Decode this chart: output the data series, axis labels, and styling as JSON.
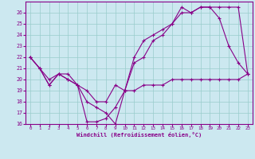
{
  "xlabel": "Windchill (Refroidissement éolien,°C)",
  "bg_color": "#cce8f0",
  "grid_color": "#99cccc",
  "line_color": "#880088",
  "spine_color": "#880088",
  "ylim": [
    16,
    27
  ],
  "xlim": [
    -0.5,
    23.5
  ],
  "yticks": [
    16,
    17,
    18,
    19,
    20,
    21,
    22,
    23,
    24,
    25,
    26
  ],
  "xticks": [
    0,
    1,
    2,
    3,
    4,
    5,
    6,
    7,
    8,
    9,
    10,
    11,
    12,
    13,
    14,
    15,
    16,
    17,
    18,
    19,
    20,
    21,
    22,
    23
  ],
  "series": [
    {
      "x": [
        0,
        1,
        2,
        3,
        4,
        5,
        6,
        7,
        8,
        9,
        10,
        11,
        12,
        13,
        14,
        15,
        16,
        17,
        18,
        19,
        20,
        21,
        22,
        23
      ],
      "y": [
        22,
        21,
        20,
        20.5,
        20,
        19.5,
        16.2,
        16.2,
        16.5,
        17.5,
        19,
        19,
        19.5,
        19.5,
        19.5,
        20,
        20,
        20,
        20,
        20,
        20,
        20,
        20,
        20.5
      ]
    },
    {
      "x": [
        0,
        1,
        2,
        3,
        4,
        5,
        6,
        7,
        8,
        9,
        10,
        11,
        12,
        13,
        14,
        15,
        16,
        17,
        18,
        19,
        20,
        21,
        22,
        23
      ],
      "y": [
        22,
        21,
        19.5,
        20.5,
        20,
        19.5,
        18,
        17.5,
        17,
        16,
        19,
        21.5,
        22,
        23.5,
        24,
        25,
        26.5,
        26,
        26.5,
        26.5,
        25.5,
        23,
        21.5,
        20.5
      ]
    },
    {
      "x": [
        0,
        1,
        2,
        3,
        4,
        5,
        6,
        7,
        8,
        9,
        10,
        11,
        12,
        13,
        14,
        15,
        16,
        17,
        18,
        19,
        20,
        21,
        22,
        23
      ],
      "y": [
        22,
        21,
        19.5,
        20.5,
        20.5,
        19.5,
        19,
        18,
        18,
        19.5,
        19,
        22,
        23.5,
        24,
        24.5,
        25,
        26,
        26,
        26.5,
        26.5,
        26.5,
        26.5,
        26.5,
        20.5
      ]
    }
  ]
}
